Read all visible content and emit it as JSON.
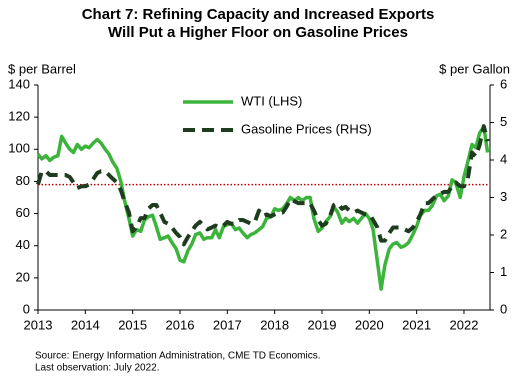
{
  "chart_data": {
    "type": "line",
    "title": [
      "Chart 7: Refining Capacity and Increased Exports",
      "Will Put a Higher Floor on Gasoline Prices"
    ],
    "ylabel": "$ per Barrel",
    "y2label": "$ per Gallon",
    "source": [
      "Source: Energy Information  Administration,  CME  TD Economics.",
      "Last observation: July 2022."
    ],
    "xlim": [
      2013,
      2022.55
    ],
    "xticks": [
      2013,
      2014,
      2015,
      2016,
      2017,
      2018,
      2019,
      2020,
      2021,
      2022
    ],
    "ylim": [
      0,
      140
    ],
    "yticks": [
      0,
      20,
      40,
      60,
      80,
      100,
      120,
      140
    ],
    "y2lim": [
      0,
      6
    ],
    "y2ticks": [
      0,
      1,
      2,
      3,
      4,
      5,
      6
    ],
    "hline": {
      "value": 78,
      "color": "#c00000"
    },
    "x": [
      2013,
      2013.08,
      2013.17,
      2013.25,
      2013.33,
      2013.42,
      2013.5,
      2013.58,
      2013.67,
      2013.75,
      2013.83,
      2013.92,
      2014,
      2014.08,
      2014.17,
      2014.25,
      2014.33,
      2014.42,
      2014.5,
      2014.58,
      2014.67,
      2014.75,
      2014.83,
      2014.92,
      2015,
      2015.08,
      2015.17,
      2015.25,
      2015.33,
      2015.42,
      2015.5,
      2015.58,
      2015.67,
      2015.75,
      2015.83,
      2015.92,
      2016,
      2016.08,
      2016.17,
      2016.25,
      2016.33,
      2016.42,
      2016.5,
      2016.58,
      2016.67,
      2016.75,
      2016.83,
      2016.92,
      2017,
      2017.08,
      2017.17,
      2017.25,
      2017.33,
      2017.42,
      2017.5,
      2017.58,
      2017.67,
      2017.75,
      2017.83,
      2017.92,
      2018,
      2018.08,
      2018.17,
      2018.25,
      2018.33,
      2018.42,
      2018.5,
      2018.58,
      2018.67,
      2018.75,
      2018.83,
      2018.92,
      2019,
      2019.08,
      2019.17,
      2019.25,
      2019.33,
      2019.42,
      2019.5,
      2019.58,
      2019.67,
      2019.75,
      2019.83,
      2019.92,
      2020,
      2020.08,
      2020.17,
      2020.25,
      2020.33,
      2020.42,
      2020.5,
      2020.58,
      2020.67,
      2020.75,
      2020.83,
      2020.92,
      2021,
      2021.08,
      2021.17,
      2021.25,
      2021.33,
      2021.42,
      2021.5,
      2021.58,
      2021.67,
      2021.75,
      2021.83,
      2021.92,
      2022,
      2022.08,
      2022.17,
      2022.25,
      2022.33,
      2022.42,
      2022.5
    ],
    "series": [
      {
        "name": "WTI (LHS)",
        "color": "#3cb43c",
        "dash": false,
        "values": [
          97,
          94,
          96,
          93,
          95,
          96,
          108,
          104,
          100,
          98,
          103,
          100,
          102,
          101,
          104,
          106,
          104,
          100,
          97,
          92,
          88,
          80,
          68,
          57,
          46,
          50,
          49,
          56,
          58,
          59,
          52,
          44,
          45,
          46,
          42,
          38,
          31,
          30,
          37,
          41,
          47,
          48,
          44,
          45,
          45,
          50,
          45,
          52,
          53,
          54,
          50,
          51,
          48,
          45,
          47,
          48,
          50,
          52,
          57,
          58,
          63,
          62,
          63,
          66,
          70,
          68,
          70,
          68,
          70,
          70,
          57,
          49,
          51,
          55,
          58,
          64,
          61,
          54,
          57,
          55,
          57,
          54,
          57,
          60,
          57,
          50,
          30,
          13,
          28,
          38,
          41,
          42,
          39,
          40,
          42,
          47,
          52,
          59,
          62,
          62,
          65,
          71,
          72,
          68,
          71,
          81,
          79,
          70,
          83,
          92,
          103,
          101,
          110,
          114,
          98
        ]
      },
      {
        "name": "Gasoline Prices (RHS)",
        "color": "#1e3d1e",
        "dash": true,
        "axis": "y2",
        "values": [
          3.35,
          3.7,
          3.7,
          3.6,
          3.6,
          3.6,
          3.6,
          3.6,
          3.55,
          3.4,
          3.25,
          3.3,
          3.3,
          3.35,
          3.5,
          3.65,
          3.7,
          3.7,
          3.6,
          3.5,
          3.4,
          3.2,
          2.9,
          2.6,
          2.1,
          2.2,
          2.45,
          2.45,
          2.7,
          2.8,
          2.8,
          2.6,
          2.35,
          2.3,
          2.2,
          2.05,
          1.95,
          1.75,
          1.95,
          2.1,
          2.25,
          2.35,
          2.25,
          2.15,
          2.2,
          2.25,
          2.2,
          2.25,
          2.35,
          2.3,
          2.3,
          2.4,
          2.4,
          2.35,
          2.3,
          2.35,
          2.65,
          2.5,
          2.55,
          2.5,
          2.55,
          2.6,
          2.6,
          2.75,
          2.95,
          2.9,
          2.85,
          2.85,
          2.85,
          2.85,
          2.65,
          2.4,
          2.25,
          2.3,
          2.5,
          2.8,
          2.85,
          2.7,
          2.75,
          2.65,
          2.6,
          2.65,
          2.6,
          2.55,
          2.55,
          2.4,
          2.2,
          1.85,
          1.85,
          2.05,
          2.2,
          2.2,
          2.2,
          2.15,
          2.1,
          2.2,
          2.35,
          2.55,
          2.85,
          2.85,
          2.95,
          3.05,
          3.1,
          3.15,
          3.15,
          3.3,
          3.4,
          3.3,
          3.3,
          3.5,
          4.2,
          4.1,
          4.4,
          4.9,
          4.5
        ]
      }
    ]
  }
}
